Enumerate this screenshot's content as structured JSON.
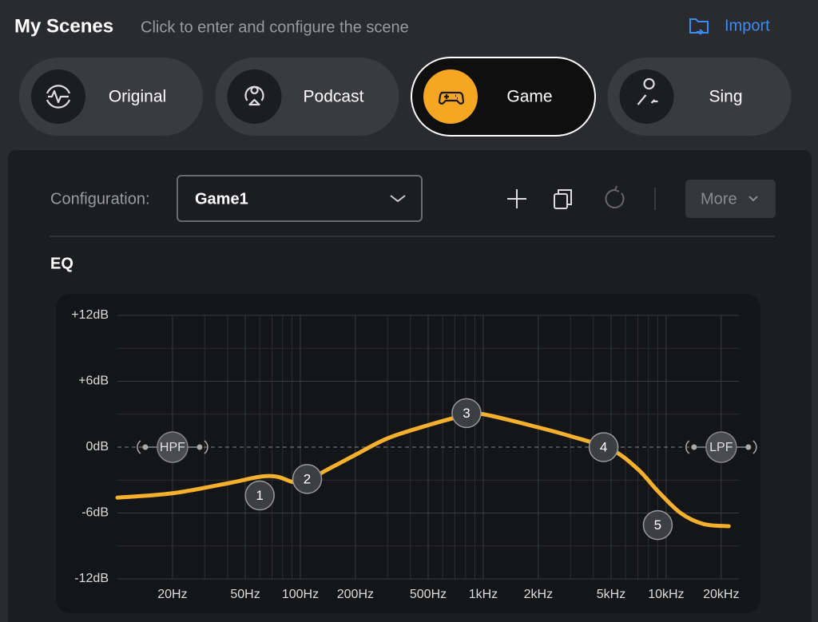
{
  "header": {
    "title": "My Scenes",
    "subtitle": "Click to enter and configure the scene",
    "action": "Import"
  },
  "scenes": [
    {
      "label": "Original"
    },
    {
      "label": "Podcast"
    },
    {
      "label": "Game",
      "selected": true
    },
    {
      "label": "Sing"
    }
  ],
  "configuration": {
    "label": "Configuration:",
    "value": "Game1",
    "more": "More"
  },
  "eq": {
    "title": "EQ",
    "chart_data": {
      "type": "line",
      "log_x": true,
      "xlim": [
        10,
        25000
      ],
      "ylim": [
        -12,
        12
      ],
      "xticks": [
        {
          "value": 20,
          "label": "20Hz"
        },
        {
          "value": 50,
          "label": "50Hz"
        },
        {
          "value": 100,
          "label": "100Hz"
        },
        {
          "value": 200,
          "label": "200Hz"
        },
        {
          "value": 500,
          "label": "500Hz"
        },
        {
          "value": 1000,
          "label": "1kHz"
        },
        {
          "value": 2000,
          "label": "2kHz"
        },
        {
          "value": 5000,
          "label": "5kHz"
        },
        {
          "value": 10000,
          "label": "10kHz"
        },
        {
          "value": 20000,
          "label": "20kHz"
        }
      ],
      "yticks": [
        {
          "value": 12,
          "label": "+12dB"
        },
        {
          "value": 6,
          "label": "+6dB"
        },
        {
          "value": 0,
          "label": "0dB"
        },
        {
          "value": -6,
          "label": "-6dB"
        },
        {
          "value": -12,
          "label": "-12dB"
        }
      ],
      "minor_xticks": [
        30,
        40,
        60,
        70,
        80,
        90,
        300,
        400,
        600,
        700,
        800,
        900,
        3000,
        4000,
        6000,
        7000,
        8000,
        9000
      ],
      "minor_yticks": [
        9,
        3,
        -3,
        -9
      ],
      "series": [
        {
          "color": "#f5b02e",
          "x": [
            10,
            20,
            40,
            60,
            75,
            100,
            150,
            200,
            300,
            500,
            800,
            1000,
            2000,
            3000,
            5000,
            7000,
            9000,
            12000,
            16000,
            22000
          ],
          "values": [
            -4.6,
            -4.2,
            -3.3,
            -2.7,
            -2.7,
            -3.2,
            -1.8,
            -0.7,
            0.8,
            2.0,
            2.9,
            3.0,
            1.8,
            1.0,
            -0.2,
            -2.0,
            -4.0,
            -6.0,
            -7.0,
            -7.2
          ]
        }
      ],
      "nodes": [
        {
          "label": "1",
          "x": 60,
          "y": -4.4
        },
        {
          "label": "2",
          "x": 109,
          "y": -2.9
        },
        {
          "label": "3",
          "x": 810,
          "y": 3.1
        },
        {
          "label": "4",
          "x": 4550,
          "y": 0
        },
        {
          "label": "5",
          "x": 9000,
          "y": -7.1
        }
      ],
      "filters": [
        {
          "label": "HPF",
          "x": 20,
          "y": 0
        },
        {
          "label": "LPF",
          "x": 20000,
          "y": 0
        }
      ]
    }
  }
}
